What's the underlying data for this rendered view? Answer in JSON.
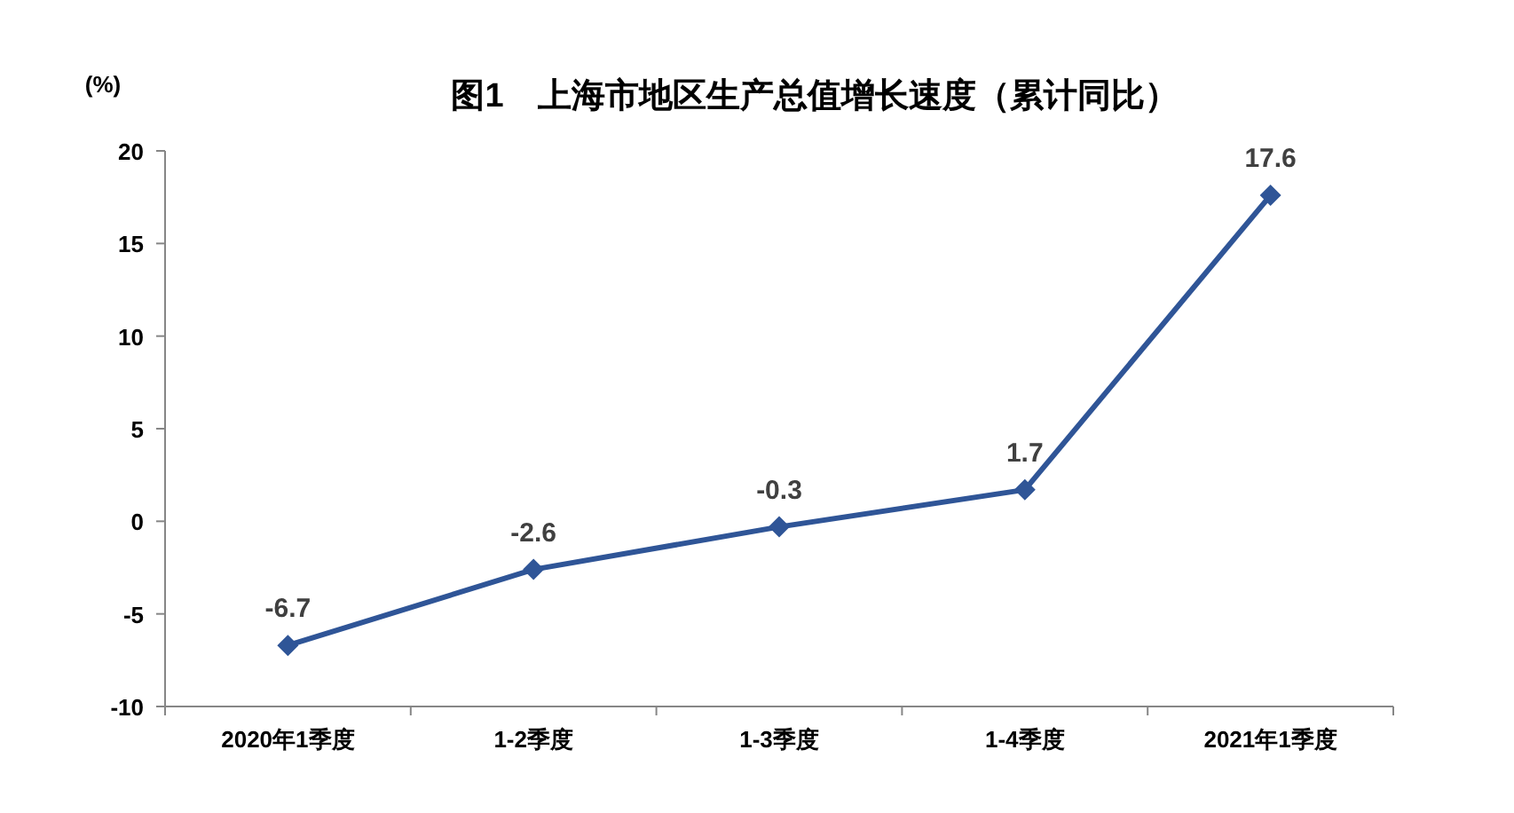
{
  "chart_data": {
    "type": "line",
    "title": "图1　上海市地区生产总值增长速度（累计同比）",
    "ylabel": "(%)",
    "categories": [
      "2020年1季度",
      "1-2季度",
      "1-3季度",
      "1-4季度",
      "2021年1季度"
    ],
    "series": [
      {
        "color": "#2f5597",
        "values": [
          -6.7,
          -2.6,
          -0.3,
          1.7,
          17.6
        ]
      }
    ],
    "ylim": [
      -10,
      20
    ],
    "yticks": [
      -10,
      -5,
      0,
      5,
      10,
      15,
      20
    ],
    "data_labels": true,
    "marker": "diamond",
    "line_style": "solid",
    "grid": false
  }
}
